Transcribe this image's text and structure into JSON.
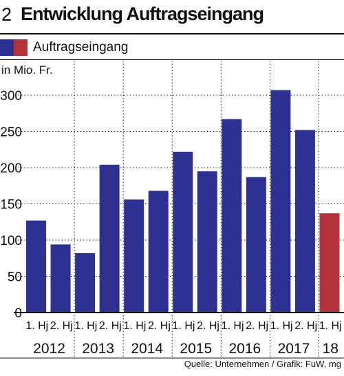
{
  "header": {
    "number": "2",
    "title": "Entwicklung Auftragseingang"
  },
  "legend": {
    "label": "Auftragseingang",
    "colors": [
      "#2e3192",
      "#b5323b"
    ]
  },
  "unit_label": "in Mio. Fr.",
  "source": "Quelle: Unternehmen / Grafik: FuW, mg",
  "chart_data": {
    "type": "bar",
    "title": "Entwicklung Auftragseingang",
    "ylabel": "in Mio. Fr.",
    "xlabel": "",
    "ylim": [
      0,
      300
    ],
    "yticks": [
      0,
      50,
      100,
      150,
      200,
      250,
      300
    ],
    "categories": [
      "1. Hj",
      "2. Hj",
      "1. Hj",
      "2. Hj",
      "1. Hj",
      "2. Hj",
      "1. Hj",
      "2. Hj",
      "1. Hj",
      "2. Hj",
      "1. Hj",
      "2. Hj",
      "1. Hj"
    ],
    "years": [
      "2012",
      "2013",
      "2014",
      "2015",
      "2016",
      "2017",
      "18"
    ],
    "series": [
      {
        "name": "Auftragseingang",
        "values": [
          127,
          94,
          82,
          204,
          156,
          168,
          222,
          195,
          267,
          187,
          307,
          252,
          137
        ]
      }
    ],
    "bar_colors": [
      "#2e3192",
      "#2e3192",
      "#2e3192",
      "#2e3192",
      "#2e3192",
      "#2e3192",
      "#2e3192",
      "#2e3192",
      "#2e3192",
      "#2e3192",
      "#2e3192",
      "#2e3192",
      "#b5323b"
    ],
    "grid": true,
    "legend_position": "top-left"
  }
}
